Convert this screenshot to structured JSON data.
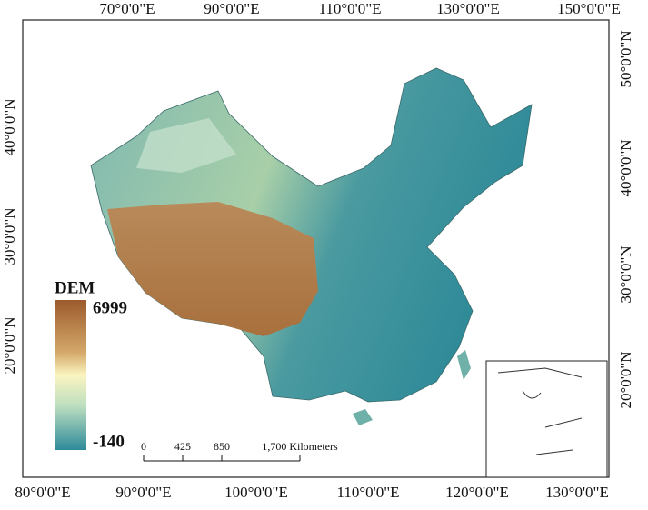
{
  "map": {
    "top_labels": [
      "70°0'0\"E",
      "90°0'0\"E",
      "110°0'0\"E",
      "130°0'0\"E",
      "150°0'0\"E"
    ],
    "bottom_labels": [
      "80°0'0\"E",
      "90°0'0\"E",
      "100°0'0\"E",
      "110°0'0\"E",
      "120°0'0\"E",
      "130°0'0\"E"
    ],
    "left_labels": [
      "40°0'0\"N",
      "30°0'0\"N",
      "20°0'0\"N"
    ],
    "right_labels": [
      "50°0'0\"N",
      "40°0'0\"N",
      "30°0'0\"N",
      "20°0'0\"N"
    ],
    "legend": {
      "title": "DEM",
      "max": 6999,
      "min": -140
    },
    "scale_bar": {
      "ticks": [
        0,
        425,
        850,
        {
          "value": 1700,
          "label": "1,700 Kilometers"
        }
      ]
    }
  }
}
